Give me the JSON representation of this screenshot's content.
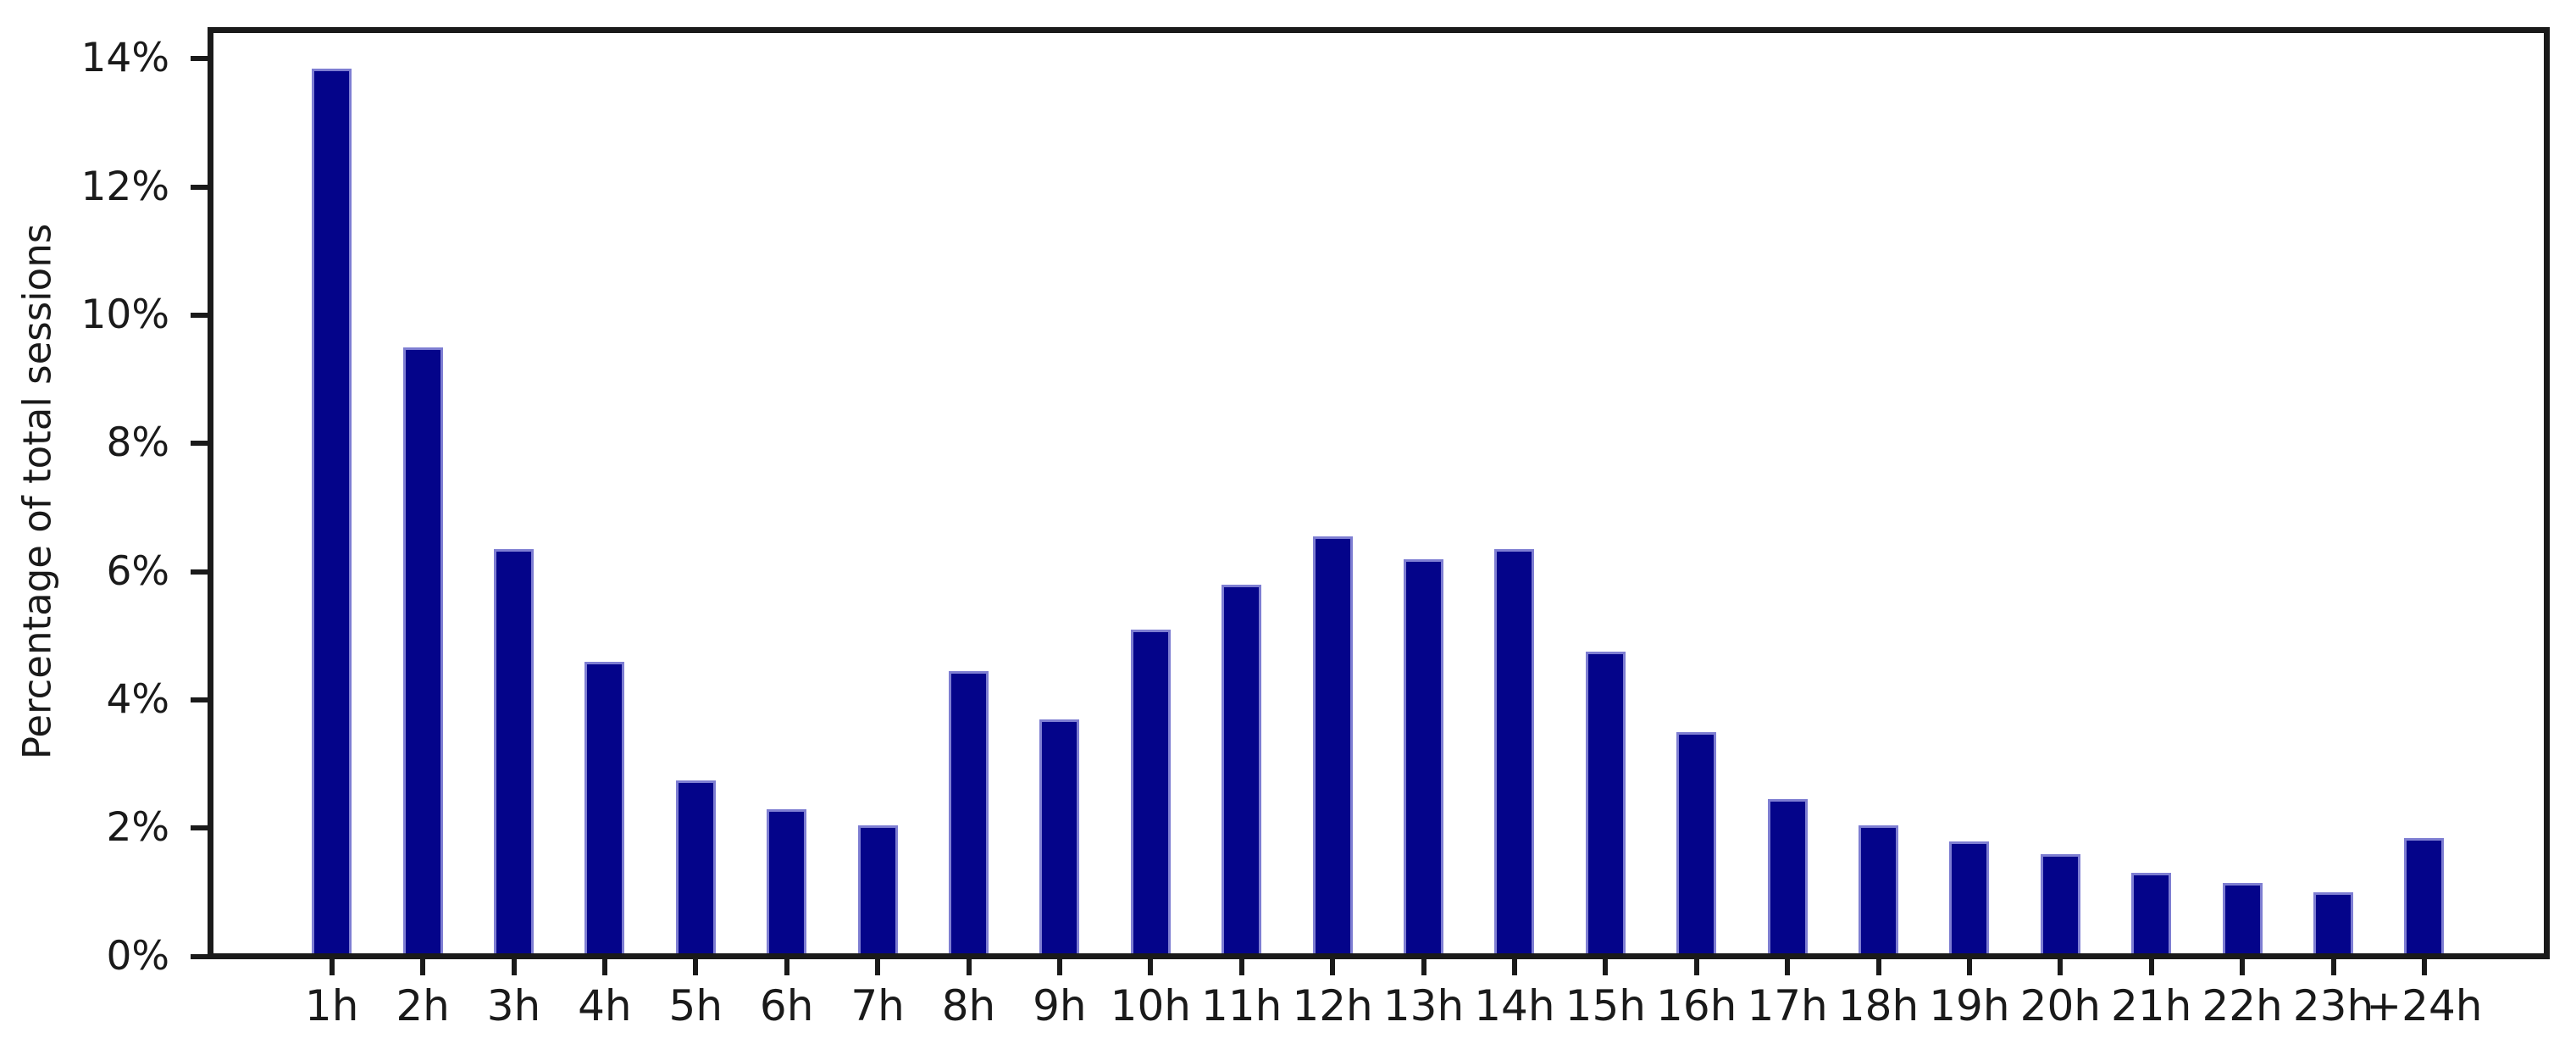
{
  "chart_data": {
    "type": "bar",
    "title": "",
    "xlabel": "",
    "ylabel": "Percentage of total sessions",
    "categories": [
      "1h",
      "2h",
      "3h",
      "4h",
      "5h",
      "6h",
      "7h",
      "8h",
      "9h",
      "10h",
      "11h",
      "12h",
      "13h",
      "14h",
      "15h",
      "16h",
      "17h",
      "18h",
      "19h",
      "20h",
      "21h",
      "22h",
      "23h",
      "+24h"
    ],
    "values": [
      13.8,
      9.45,
      6.3,
      4.55,
      2.7,
      2.25,
      2.0,
      4.4,
      3.65,
      5.05,
      5.75,
      6.5,
      6.15,
      6.3,
      4.7,
      3.45,
      2.4,
      2.0,
      1.75,
      1.55,
      1.25,
      1.1,
      0.95,
      1.8
    ],
    "ytick_values": [
      0,
      2,
      4,
      6,
      8,
      10,
      12,
      14
    ],
    "ytick_labels": [
      "0%",
      "2%",
      "4%",
      "6%",
      "8%",
      "10%",
      "12%",
      "14%"
    ],
    "ylim": [
      0,
      14.4
    ],
    "grid": false,
    "legend_position": "none",
    "bar_color": "#00008B",
    "bar_edge_color": "#7e7ed2",
    "axis_color": "#1a1a1a",
    "background_color": "#ffffff"
  }
}
